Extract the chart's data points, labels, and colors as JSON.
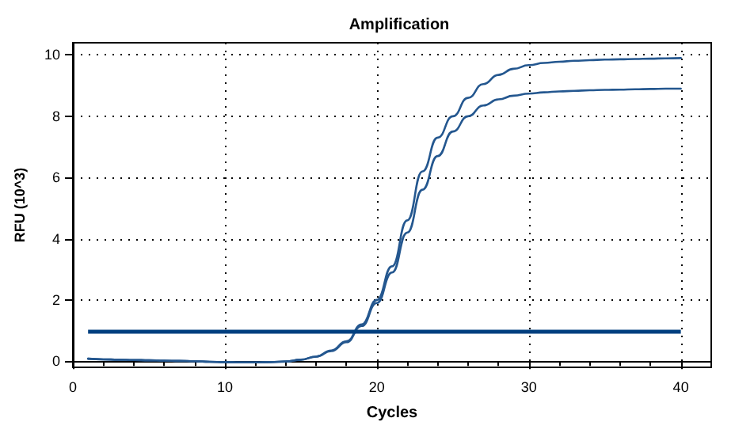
{
  "chart_data": {
    "type": "line",
    "title": "Amplification",
    "xlabel": "Cycles",
    "ylabel": "RFU (10^3)",
    "x": [
      1,
      2,
      3,
      4,
      5,
      6,
      7,
      8,
      9,
      10,
      11,
      12,
      13,
      14,
      15,
      16,
      17,
      18,
      19,
      20,
      21,
      22,
      23,
      24,
      25,
      26,
      27,
      28,
      29,
      30,
      31,
      32,
      33,
      34,
      35,
      36,
      37,
      38,
      39,
      40
    ],
    "series": [
      {
        "color": "#24578f",
        "values": [
          0.08,
          0.06,
          0.05,
          0.04,
          0.03,
          0.02,
          0.01,
          0,
          -0.02,
          -0.03,
          -0.04,
          -0.04,
          -0.03,
          -0.01,
          0.05,
          0.15,
          0.35,
          0.65,
          1.2,
          2.0,
          3.1,
          4.6,
          6.2,
          7.3,
          8.0,
          8.6,
          9.05,
          9.35,
          9.55,
          9.67,
          9.74,
          9.78,
          9.81,
          9.83,
          9.85,
          9.86,
          9.87,
          9.88,
          9.89,
          9.9
        ]
      },
      {
        "color": "#24578f",
        "values": [
          0.08,
          0.06,
          0.05,
          0.04,
          0.03,
          0.02,
          0.01,
          0,
          -0.02,
          -0.03,
          -0.04,
          -0.04,
          -0.03,
          -0.01,
          0.05,
          0.15,
          0.33,
          0.62,
          1.15,
          1.9,
          2.9,
          4.2,
          5.6,
          6.7,
          7.5,
          8.0,
          8.35,
          8.55,
          8.67,
          8.74,
          8.78,
          8.81,
          8.83,
          8.85,
          8.86,
          8.87,
          8.88,
          8.89,
          8.9,
          8.9
        ]
      }
    ],
    "ref_lines": [
      {
        "axis": "y",
        "value": 1,
        "color": "#003f7f",
        "line_style": "solid"
      }
    ],
    "xlim": [
      0,
      42
    ],
    "ylim": [
      -0.2,
      10.4
    ],
    "xticks": [
      0,
      10,
      20,
      30,
      40
    ],
    "yticks": [
      0,
      2,
      4,
      6,
      8,
      10
    ],
    "grid": true,
    "marker": "none",
    "line_style": "solid"
  }
}
